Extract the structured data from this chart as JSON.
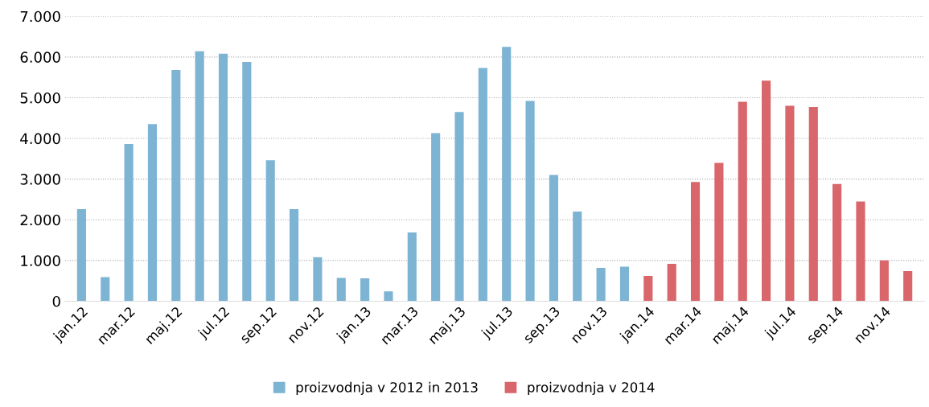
{
  "chart_data": {
    "type": "bar",
    "categories": [
      "jan.12",
      null,
      "mar.12",
      null,
      "maj.12",
      null,
      "jul.12",
      null,
      "sep.12",
      null,
      "nov.12",
      null,
      "jan.13",
      null,
      "mar.13",
      null,
      "maj.13",
      null,
      "jul.13",
      null,
      "sep.13",
      null,
      "nov.13",
      null,
      "jan.14",
      null,
      "mar.14",
      null,
      "maj.14",
      null,
      "jul.14",
      null,
      "sep.14",
      null,
      "nov.14",
      null
    ],
    "series": [
      {
        "name": "proizvodnja v 2012 in 2013",
        "color": "#7db4d4",
        "values": [
          2260,
          590,
          3860,
          4350,
          5680,
          6140,
          6080,
          5880,
          3460,
          2260,
          1080,
          570,
          560,
          240,
          1690,
          4130,
          4650,
          5730,
          6250,
          4920,
          3100,
          2200,
          820,
          850,
          null,
          null,
          null,
          null,
          null,
          null,
          null,
          null,
          null,
          null,
          null,
          null
        ]
      },
      {
        "name": "proizvodnja v 2014",
        "color": "#d9666b",
        "values": [
          null,
          null,
          null,
          null,
          null,
          null,
          null,
          null,
          null,
          null,
          null,
          null,
          null,
          null,
          null,
          null,
          null,
          null,
          null,
          null,
          null,
          null,
          null,
          null,
          620,
          920,
          2930,
          3400,
          4900,
          5420,
          4800,
          4770,
          2880,
          2450,
          1000,
          740
        ]
      }
    ],
    "ylim": [
      0,
      7000
    ],
    "yticks": [
      {
        "value": 0,
        "label": "0"
      },
      {
        "value": 1000,
        "label": "1.000"
      },
      {
        "value": 2000,
        "label": "2.000"
      },
      {
        "value": 3000,
        "label": "3.000"
      },
      {
        "value": 4000,
        "label": "4.000"
      },
      {
        "value": 5000,
        "label": "5.000"
      },
      {
        "value": 6000,
        "label": "6.000"
      },
      {
        "value": 7000,
        "label": "7.000"
      }
    ],
    "grid": "y",
    "legend": "bottom"
  }
}
